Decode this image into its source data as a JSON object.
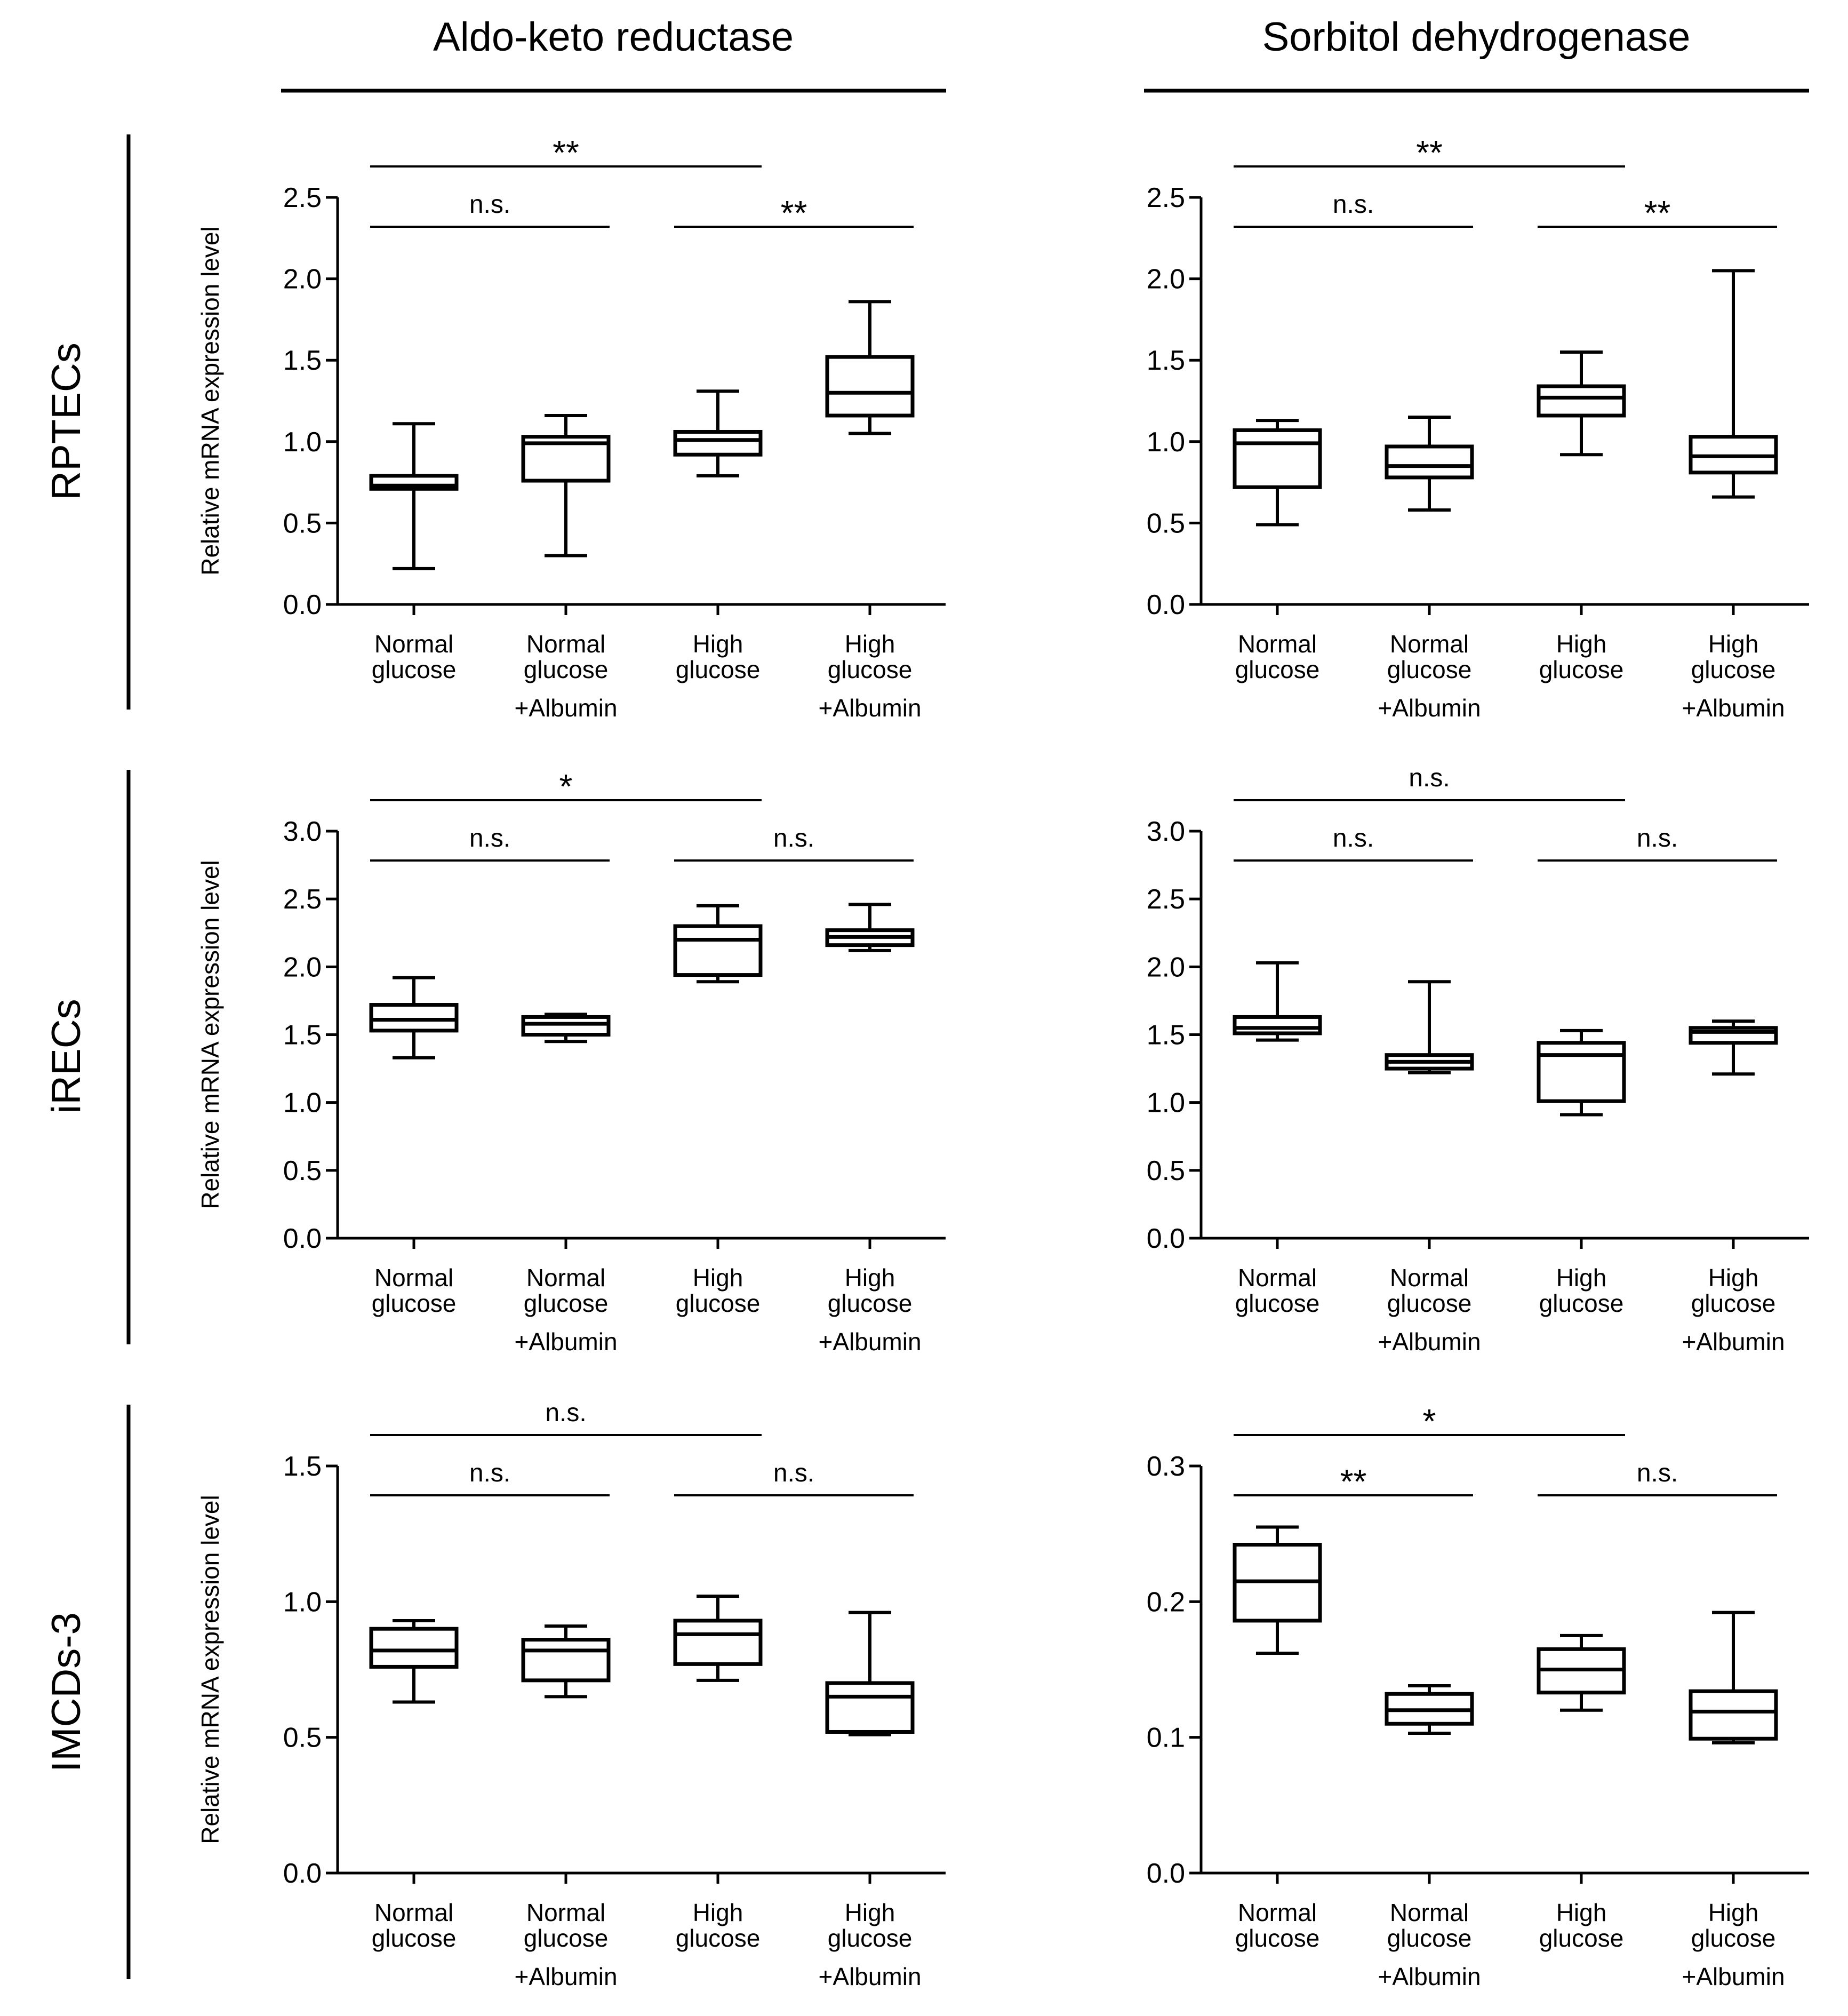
{
  "figure": {
    "column_titles": [
      "Aldo-keto reductase",
      "Sorbitol dehydrogenase"
    ],
    "row_labels": [
      "RPTECs",
      "iRECs",
      "IMCDs-3"
    ]
  },
  "common": {
    "ylabel": "Relative mRNA expression level",
    "categories": [
      {
        "line1": "Normal",
        "line2": "glucose",
        "line3": ""
      },
      {
        "line1": "Normal",
        "line2": "glucose",
        "line3": "+Albumin"
      },
      {
        "line1": "High",
        "line2": "glucose",
        "line3": ""
      },
      {
        "line1": "High",
        "line2": "glucose",
        "line3": "+Albumin"
      }
    ]
  },
  "chart_data": [
    {
      "type": "box",
      "title": "Aldo-keto reductase",
      "row": "RPTECs",
      "ylabel": "Relative mRNA expression level",
      "ylim": [
        0,
        2.5
      ],
      "yticks": [
        "0.0",
        "0.5",
        "1.0",
        "1.5",
        "2.0",
        "2.5"
      ],
      "boxes": [
        {
          "min": 0.22,
          "q1": 0.71,
          "median": 0.73,
          "q3": 0.79,
          "max": 1.11
        },
        {
          "min": 0.3,
          "q1": 0.76,
          "median": 0.99,
          "q3": 1.03,
          "max": 1.16
        },
        {
          "min": 0.79,
          "q1": 0.92,
          "median": 1.01,
          "q3": 1.06,
          "max": 1.31
        },
        {
          "min": 1.05,
          "q1": 1.16,
          "median": 1.3,
          "q3": 1.52,
          "max": 1.86
        }
      ],
      "comparisons": [
        {
          "from": 0,
          "to": 2,
          "label": "**",
          "level": 2
        },
        {
          "from": 0,
          "to": 1,
          "label": "n.s.",
          "level": 1
        },
        {
          "from": 2,
          "to": 3,
          "label": "**",
          "level": 1
        }
      ]
    },
    {
      "type": "box",
      "title": "Sorbitol dehydrogenase",
      "row": "RPTECs",
      "ylabel": "",
      "ylim": [
        0,
        2.5
      ],
      "yticks": [
        "0.0",
        "0.5",
        "1.0",
        "1.5",
        "2.0",
        "2.5"
      ],
      "boxes": [
        {
          "min": 0.49,
          "q1": 0.72,
          "median": 0.99,
          "q3": 1.07,
          "max": 1.13
        },
        {
          "min": 0.58,
          "q1": 0.78,
          "median": 0.85,
          "q3": 0.97,
          "max": 1.15
        },
        {
          "min": 0.92,
          "q1": 1.16,
          "median": 1.27,
          "q3": 1.34,
          "max": 1.55
        },
        {
          "min": 0.66,
          "q1": 0.81,
          "median": 0.91,
          "q3": 1.03,
          "max": 2.05
        }
      ],
      "comparisons": [
        {
          "from": 0,
          "to": 2,
          "label": "**",
          "level": 2
        },
        {
          "from": 0,
          "to": 1,
          "label": "n.s.",
          "level": 1
        },
        {
          "from": 2,
          "to": 3,
          "label": "**",
          "level": 1
        }
      ]
    },
    {
      "type": "box",
      "title": "Aldo-keto reductase",
      "row": "iRECs",
      "ylabel": "Relative mRNA expression level",
      "ylim": [
        0,
        3.0
      ],
      "yticks": [
        "0.0",
        "0.5",
        "1.0",
        "1.5",
        "2.0",
        "2.5",
        "3.0"
      ],
      "boxes": [
        {
          "min": 1.33,
          "q1": 1.53,
          "median": 1.61,
          "q3": 1.72,
          "max": 1.92
        },
        {
          "min": 1.45,
          "q1": 1.5,
          "median": 1.58,
          "q3": 1.63,
          "max": 1.65
        },
        {
          "min": 1.89,
          "q1": 1.94,
          "median": 2.2,
          "q3": 2.3,
          "max": 2.45
        },
        {
          "min": 2.12,
          "q1": 2.16,
          "median": 2.22,
          "q3": 2.27,
          "max": 2.46
        }
      ],
      "comparisons": [
        {
          "from": 0,
          "to": 2,
          "label": "*",
          "level": 2
        },
        {
          "from": 0,
          "to": 1,
          "label": "n.s.",
          "level": 1
        },
        {
          "from": 2,
          "to": 3,
          "label": "n.s.",
          "level": 1
        }
      ]
    },
    {
      "type": "box",
      "title": "Sorbitol dehydrogenase",
      "row": "iRECs",
      "ylabel": "",
      "ylim": [
        0,
        3.0
      ],
      "yticks": [
        "0.0",
        "0.5",
        "1.0",
        "1.5",
        "2.0",
        "2.5",
        "3.0"
      ],
      "boxes": [
        {
          "min": 1.46,
          "q1": 1.51,
          "median": 1.55,
          "q3": 1.63,
          "max": 2.03
        },
        {
          "min": 1.22,
          "q1": 1.25,
          "median": 1.3,
          "q3": 1.35,
          "max": 1.89
        },
        {
          "min": 0.91,
          "q1": 1.01,
          "median": 1.35,
          "q3": 1.44,
          "max": 1.53
        },
        {
          "min": 1.21,
          "q1": 1.44,
          "median": 1.52,
          "q3": 1.55,
          "max": 1.6
        }
      ],
      "comparisons": [
        {
          "from": 0,
          "to": 2,
          "label": "n.s.",
          "level": 2
        },
        {
          "from": 0,
          "to": 1,
          "label": "n.s.",
          "level": 1
        },
        {
          "from": 2,
          "to": 3,
          "label": "n.s.",
          "level": 1
        }
      ]
    },
    {
      "type": "box",
      "title": "Aldo-keto reductase",
      "row": "IMCDs-3",
      "ylabel": "Relative mRNA expression level",
      "ylim": [
        0,
        1.5
      ],
      "yticks": [
        "0.0",
        "0.5",
        "1.0",
        "1.5"
      ],
      "boxes": [
        {
          "min": 0.63,
          "q1": 0.76,
          "median": 0.82,
          "q3": 0.9,
          "max": 0.93
        },
        {
          "min": 0.65,
          "q1": 0.71,
          "median": 0.82,
          "q3": 0.86,
          "max": 0.91
        },
        {
          "min": 0.71,
          "q1": 0.77,
          "median": 0.88,
          "q3": 0.93,
          "max": 1.02
        },
        {
          "min": 0.51,
          "q1": 0.52,
          "median": 0.65,
          "q3": 0.7,
          "max": 0.96
        }
      ],
      "comparisons": [
        {
          "from": 0,
          "to": 2,
          "label": "n.s.",
          "level": 2
        },
        {
          "from": 0,
          "to": 1,
          "label": "n.s.",
          "level": 1
        },
        {
          "from": 2,
          "to": 3,
          "label": "n.s.",
          "level": 1
        }
      ]
    },
    {
      "type": "box",
      "title": "Sorbitol dehydrogenase",
      "row": "IMCDs-3",
      "ylabel": "",
      "ylim": [
        0,
        0.3
      ],
      "yticks": [
        "0.0",
        "0.1",
        "0.2",
        "0.3"
      ],
      "boxes": [
        {
          "min": 0.162,
          "q1": 0.186,
          "median": 0.215,
          "q3": 0.242,
          "max": 0.255
        },
        {
          "min": 0.103,
          "q1": 0.11,
          "median": 0.12,
          "q3": 0.132,
          "max": 0.138
        },
        {
          "min": 0.12,
          "q1": 0.133,
          "median": 0.15,
          "q3": 0.165,
          "max": 0.175
        },
        {
          "min": 0.096,
          "q1": 0.099,
          "median": 0.119,
          "q3": 0.134,
          "max": 0.192
        }
      ],
      "comparisons": [
        {
          "from": 0,
          "to": 2,
          "label": "*",
          "level": 2
        },
        {
          "from": 0,
          "to": 1,
          "label": "**",
          "level": 1
        },
        {
          "from": 2,
          "to": 3,
          "label": "n.s.",
          "level": 1
        }
      ]
    }
  ]
}
